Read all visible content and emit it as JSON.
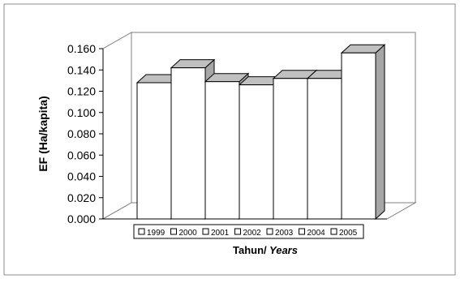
{
  "chart_data": {
    "type": "bar",
    "style": "3d",
    "categories": [
      "1999",
      "2000",
      "2001",
      "2002",
      "2003",
      "2004",
      "2005"
    ],
    "values": [
      0.128,
      0.142,
      0.129,
      0.126,
      0.132,
      0.132,
      0.156
    ],
    "ylabel": "EF (Ha/kapita)",
    "xlabel_main": "Tahun/",
    "xlabel_italic": " Years",
    "ylim": [
      0,
      0.16
    ],
    "yticks": [
      "0.000",
      "0.020",
      "0.040",
      "0.060",
      "0.080",
      "0.100",
      "0.120",
      "0.140",
      "0.160"
    ],
    "grid": false,
    "legend": "bottom",
    "colors": {
      "bar_front": "#ffffff",
      "bar_top": "#c0c0c0",
      "bar_side": "#a6a6a6",
      "outline": "#000000",
      "wall": "#808080",
      "frame": "#8c8c8c"
    }
  }
}
